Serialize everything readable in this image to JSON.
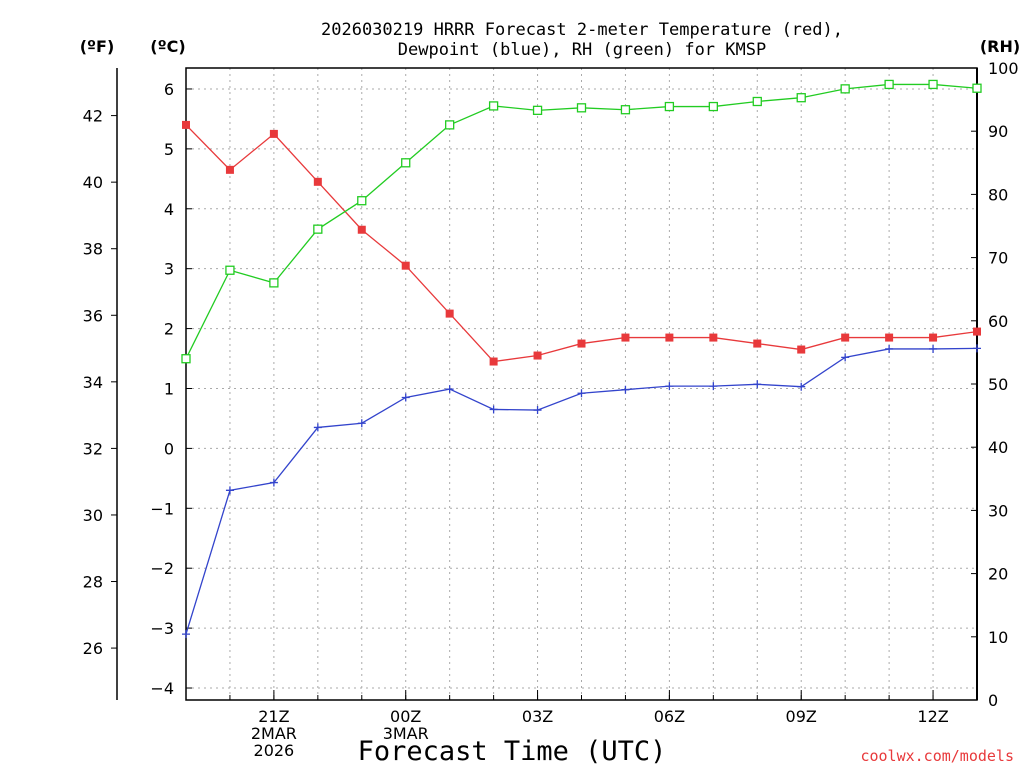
{
  "chart_data": {
    "type": "line",
    "title_line1": "2026030219 HRRR Forecast 2-meter Temperature (red),",
    "title_line2": "Dewpoint (blue), RH (green) for KMSP",
    "xlabel": "Forecast Time (UTC)",
    "left_outer_unit": "(ºF)",
    "left_inner_unit": "(ºC)",
    "right_unit": "(RH)",
    "credit": "coolwx.com/models",
    "x_hours": [
      0,
      1,
      2,
      3,
      4,
      5,
      6,
      7,
      8,
      9,
      10,
      11,
      12,
      13,
      14,
      15,
      16,
      17,
      18
    ],
    "x_ticks": [
      {
        "hour": 2,
        "lines": [
          "21Z",
          "2MAR",
          "2026"
        ]
      },
      {
        "hour": 5,
        "lines": [
          "00Z",
          "3MAR"
        ]
      },
      {
        "hour": 8,
        "lines": [
          "03Z"
        ]
      },
      {
        "hour": 11,
        "lines": [
          "06Z"
        ]
      },
      {
        "hour": 14,
        "lines": [
          "09Z"
        ]
      },
      {
        "hour": 17,
        "lines": [
          "12Z"
        ]
      }
    ],
    "c_ylim": [
      -4.2,
      6.35
    ],
    "c_ticks": [
      -4,
      -3,
      -2,
      -1,
      0,
      1,
      2,
      3,
      4,
      5,
      6
    ],
    "c_tick_labels": [
      "−4",
      "−3",
      "−2",
      "−1",
      "0",
      "1",
      "2",
      "3",
      "4",
      "5",
      "6"
    ],
    "f_ticks": [
      26,
      28,
      30,
      32,
      34,
      36,
      38,
      40,
      42
    ],
    "rh_ylim": [
      0,
      100
    ],
    "rh_ticks": [
      0,
      10,
      20,
      30,
      40,
      50,
      60,
      70,
      80,
      90,
      100
    ],
    "series": [
      {
        "name": "Temperature",
        "unit": "C",
        "color": "#e8393b",
        "marker": "filled-square",
        "values": [
          5.4,
          4.65,
          5.25,
          4.45,
          3.65,
          3.05,
          2.25,
          1.45,
          1.55,
          1.75,
          1.85,
          1.85,
          1.85,
          1.75,
          1.65,
          1.85,
          1.85,
          1.85,
          1.95
        ]
      },
      {
        "name": "Dewpoint",
        "unit": "C",
        "color": "#3344cc",
        "marker": "plus",
        "values": [
          -3.1,
          -0.7,
          -0.57,
          0.35,
          0.42,
          0.85,
          0.99,
          0.65,
          0.64,
          0.92,
          0.98,
          1.04,
          1.04,
          1.07,
          1.03,
          1.52,
          1.66,
          1.66,
          1.67
        ]
      },
      {
        "name": "RH",
        "unit": "%",
        "color": "#22cc22",
        "marker": "open-square",
        "values": [
          54,
          68,
          66,
          74.5,
          79,
          85,
          91,
          94,
          93.3,
          93.7,
          93.4,
          93.9,
          93.9,
          94.7,
          95.3,
          96.7,
          97.4,
          97.4,
          96.8
        ]
      }
    ]
  }
}
